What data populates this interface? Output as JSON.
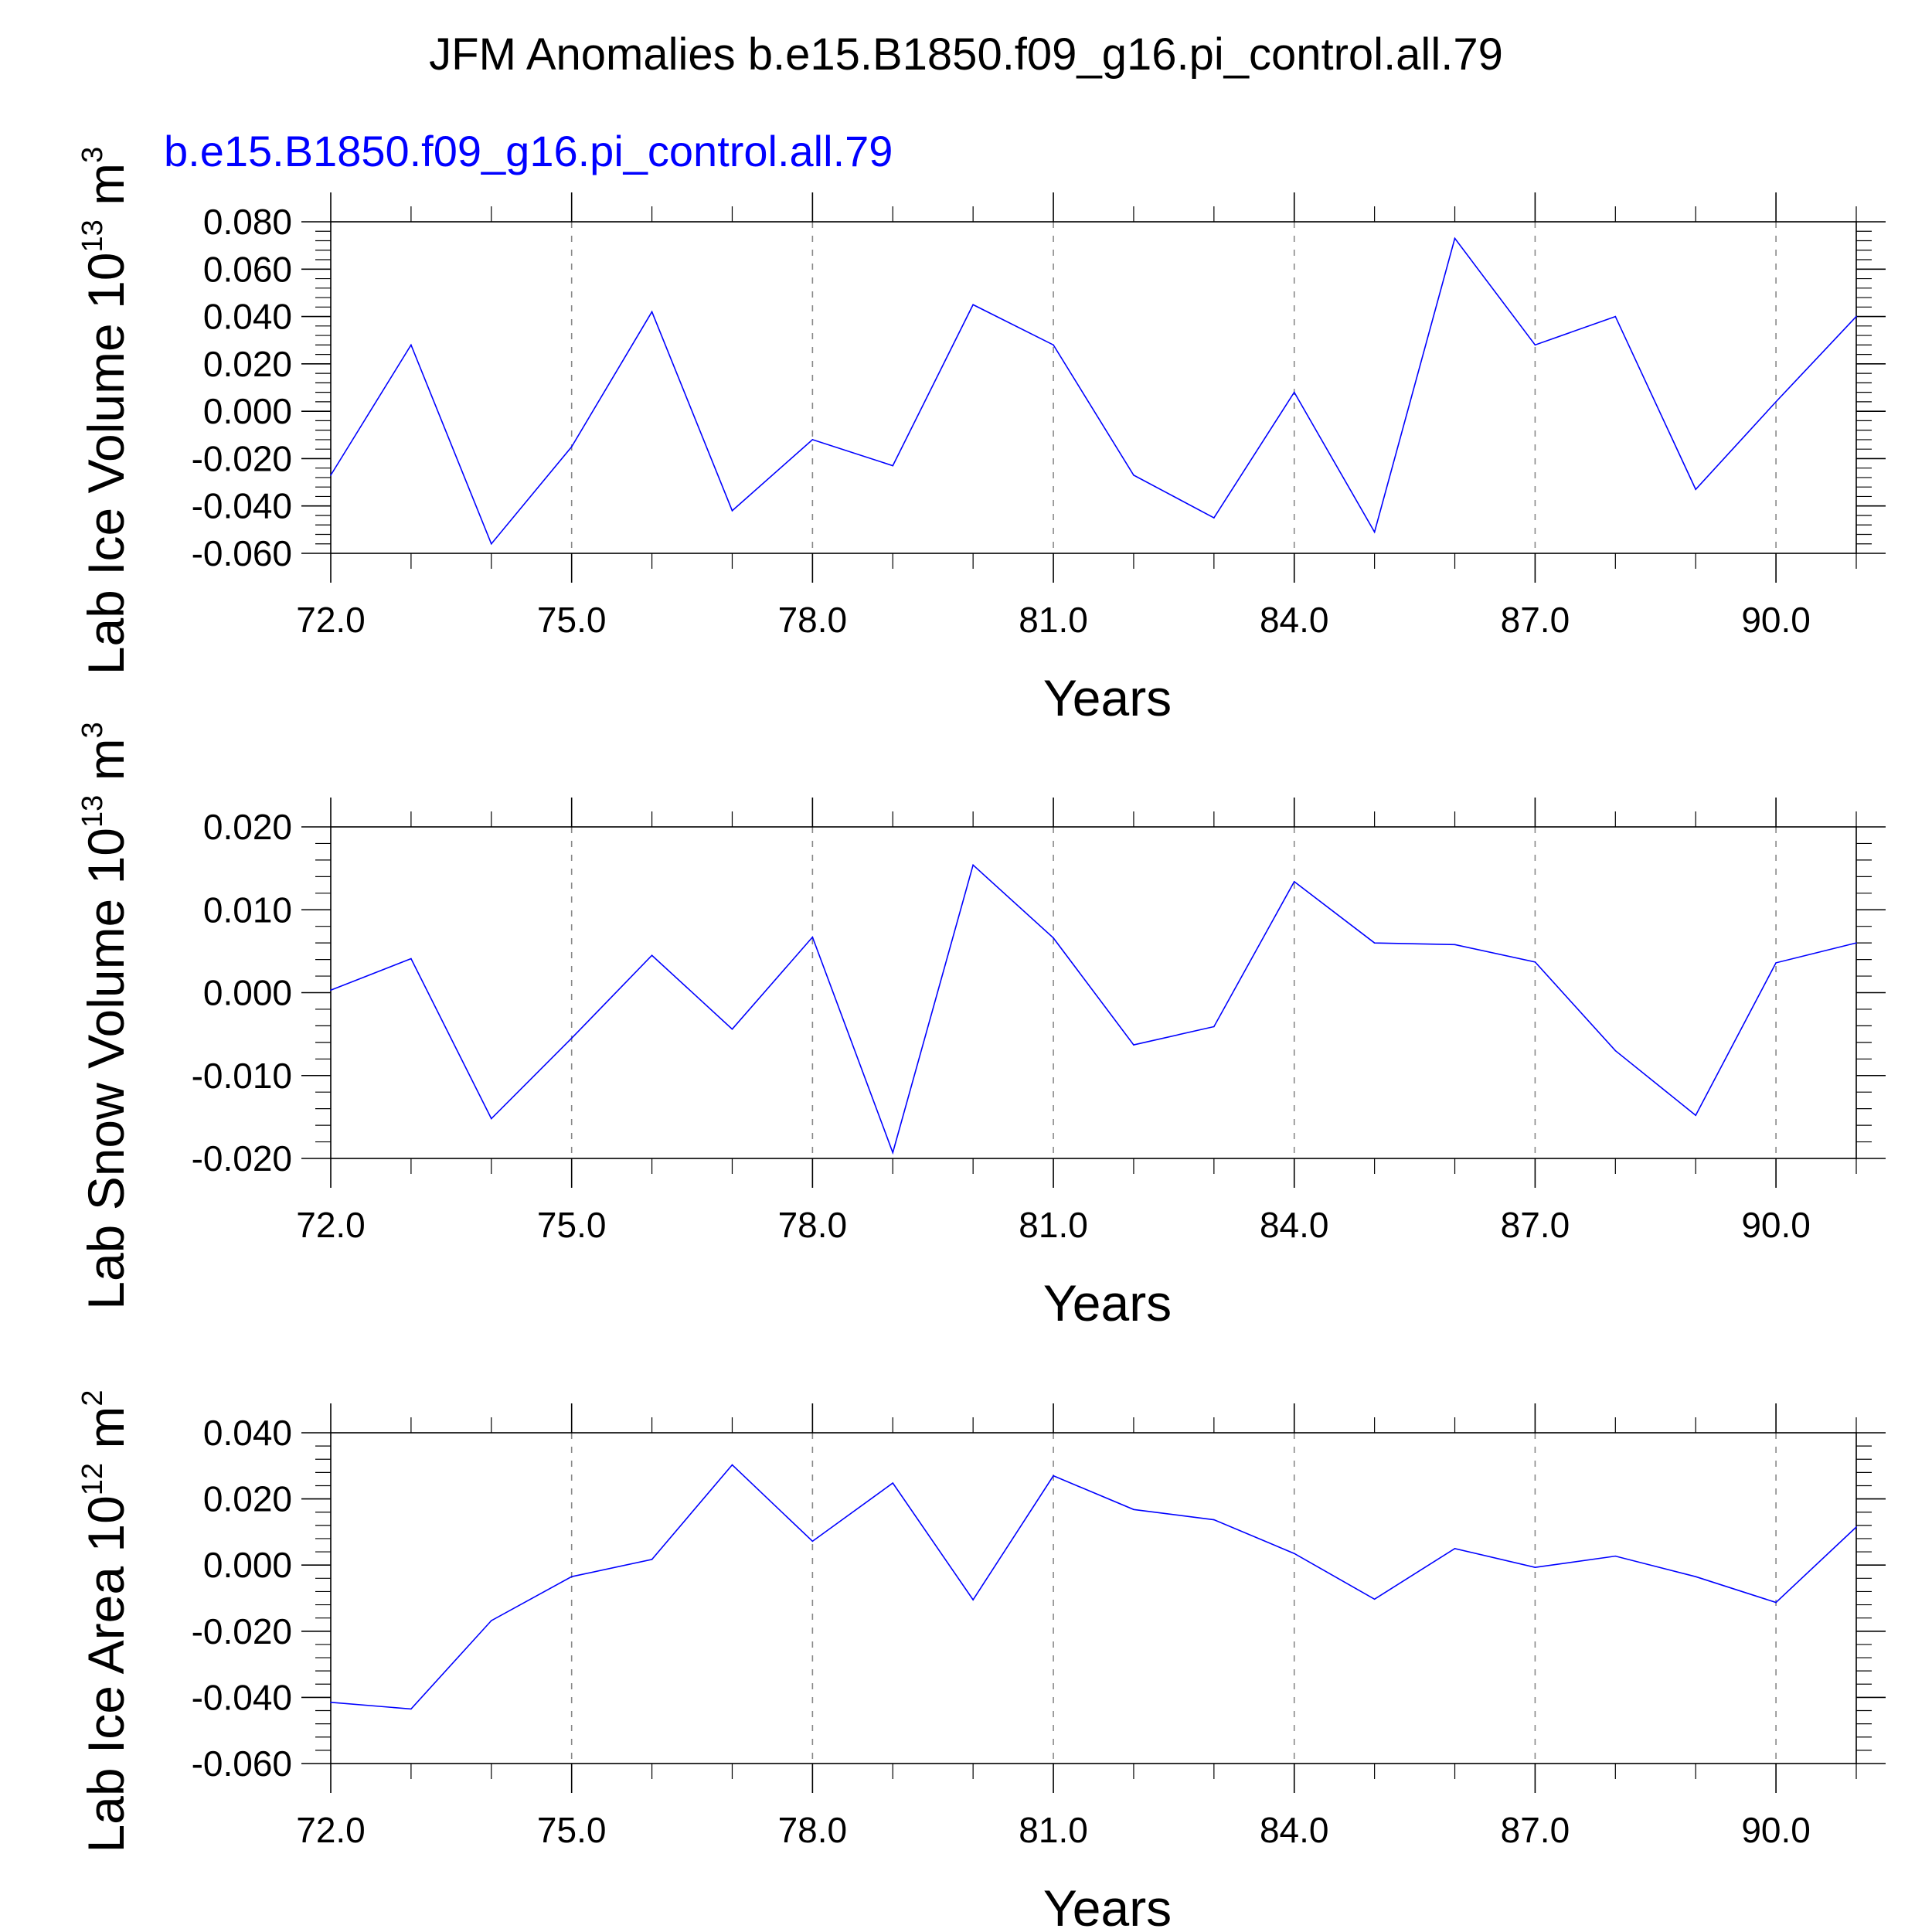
{
  "title": "JFM Anomalies b.e15.B1850.f09_g16.pi_control.all.79",
  "subtitle": "b.e15.B1850.f09_g16.pi_control.all.79",
  "colors": {
    "series": "#0000ff",
    "subtitle": "#0000ff",
    "axes": "#000000",
    "grid": "#888888"
  },
  "chart_data": [
    {
      "type": "line",
      "title": "",
      "xlabel": "Years",
      "ylabel": "Lab Ice Volume 10",
      "ylabel_exp": "13",
      "ylabel_unit": " m",
      "ylabel_unit_exp": "3",
      "xlim": [
        72,
        91
      ],
      "ylim": [
        -0.06,
        0.08
      ],
      "xticks": [
        "72.0",
        "75.0",
        "78.0",
        "81.0",
        "84.0",
        "87.0",
        "90.0"
      ],
      "yticks": [
        "0.080",
        "0.060",
        "0.040",
        "0.020",
        "0.000",
        "-0.020",
        "-0.040",
        "-0.060"
      ],
      "grid": "x",
      "x": [
        72,
        73,
        74,
        75,
        76,
        77,
        78,
        79,
        80,
        81,
        82,
        83,
        84,
        85,
        86,
        87,
        88,
        89,
        90,
        91
      ],
      "series": [
        {
          "values": [
            -0.027,
            0.028,
            -0.056,
            -0.015,
            0.042,
            -0.042,
            -0.012,
            -0.023,
            0.045,
            0.028,
            -0.027,
            -0.045,
            0.008,
            -0.051,
            0.073,
            0.028,
            0.04,
            -0.033,
            0.004,
            0.04
          ]
        }
      ]
    },
    {
      "type": "line",
      "title": "",
      "xlabel": "Years",
      "ylabel": "Lab Snow Volume 10",
      "ylabel_exp": "13",
      "ylabel_unit": " m",
      "ylabel_unit_exp": "3",
      "xlim": [
        72,
        91
      ],
      "ylim": [
        -0.02,
        0.02
      ],
      "xticks": [
        "72.0",
        "75.0",
        "78.0",
        "81.0",
        "84.0",
        "87.0",
        "90.0"
      ],
      "yticks": [
        "0.020",
        "0.010",
        "0.000",
        "-0.010",
        "-0.020"
      ],
      "grid": "x",
      "x": [
        72,
        73,
        74,
        75,
        76,
        77,
        78,
        79,
        80,
        81,
        82,
        83,
        84,
        85,
        86,
        87,
        88,
        89,
        90,
        91
      ],
      "series": [
        {
          "values": [
            0.0003,
            0.0041,
            -0.0152,
            -0.0055,
            0.0045,
            -0.0044,
            0.0067,
            -0.0193,
            0.0154,
            0.0066,
            -0.0063,
            -0.0041,
            0.0134,
            0.006,
            0.0058,
            0.0037,
            -0.007,
            -0.0148,
            0.0036,
            0.006
          ]
        }
      ]
    },
    {
      "type": "line",
      "title": "",
      "xlabel": "Years",
      "ylabel": "Lab Ice Area 10",
      "ylabel_exp": "12",
      "ylabel_unit": " m",
      "ylabel_unit_exp": "2",
      "xlim": [
        72,
        91
      ],
      "ylim": [
        -0.06,
        0.04
      ],
      "xticks": [
        "72.0",
        "75.0",
        "78.0",
        "81.0",
        "84.0",
        "87.0",
        "90.0"
      ],
      "yticks": [
        "0.040",
        "0.020",
        "0.000",
        "-0.020",
        "-0.040",
        "-0.060"
      ],
      "grid": "x",
      "x": [
        72,
        73,
        74,
        75,
        76,
        77,
        78,
        79,
        80,
        81,
        82,
        83,
        84,
        85,
        86,
        87,
        88,
        89,
        90,
        91
      ],
      "series": [
        {
          "values": [
            -0.0415,
            -0.0435,
            -0.0168,
            -0.0035,
            0.0017,
            0.0303,
            0.0072,
            0.0248,
            -0.0105,
            0.027,
            0.0168,
            0.0137,
            0.0035,
            -0.0103,
            0.005,
            -0.0007,
            0.0027,
            -0.0035,
            -0.0113,
            0.0115
          ]
        }
      ]
    }
  ]
}
